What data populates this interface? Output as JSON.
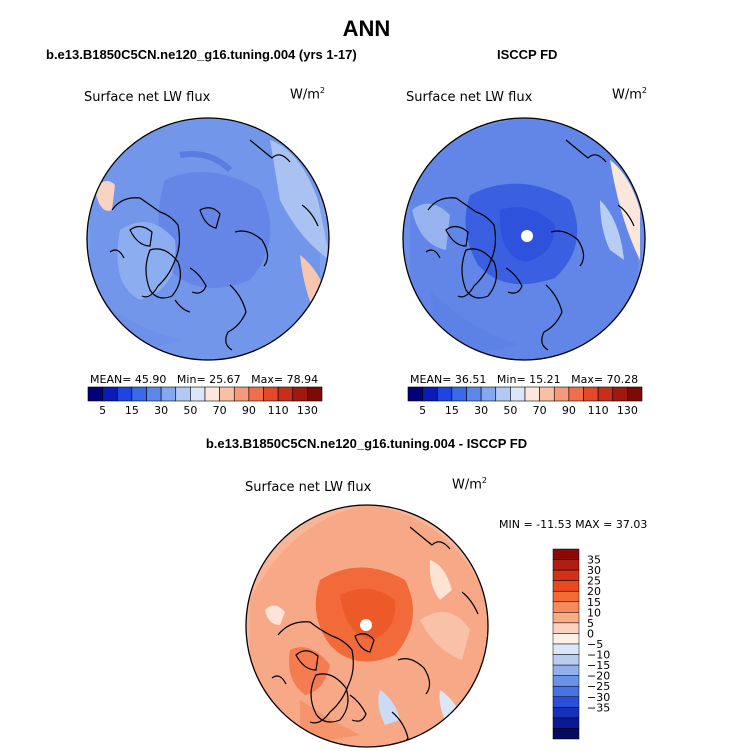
{
  "title": "ANN",
  "panels": [
    {
      "id": "model",
      "case_title": "b.e13.B1850C5CN.ne120_g16.tuning.004 (yrs 1-17)",
      "var_label": "Surface net LW flux",
      "units": "W/m",
      "units_sup": "2",
      "stats": {
        "mean_label": "MEAN=",
        "mean": "45.90",
        "min_label": "Min=",
        "min": "25.67",
        "max_label": "Max=",
        "max": "78.94"
      }
    },
    {
      "id": "obs",
      "case_title": "ISCCP FD",
      "var_label": "Surface net LW flux",
      "units": "W/m",
      "units_sup": "2",
      "stats": {
        "mean_label": "MEAN=",
        "mean": "36.51",
        "min_label": "Min=",
        "min": "15.21",
        "max_label": "Max=",
        "max": "70.28"
      }
    }
  ],
  "field_colorbar": {
    "labels": [
      "5",
      "15",
      "30",
      "50",
      "70",
      "90",
      "110",
      "130"
    ],
    "colors": [
      "#00007a",
      "#0a1bb8",
      "#1f44e3",
      "#3a6ae8",
      "#5c88ea",
      "#84a7ee",
      "#b3c8f2",
      "#dde6f8",
      "#fde6dc",
      "#f9c0a6",
      "#f59a78",
      "#ef6f4b",
      "#e24a2a",
      "#c6301a",
      "#a3180e",
      "#7c0a08"
    ]
  },
  "difference": {
    "title": "b.e13.B1850C5CN.ne120_g16.tuning.004 - ISCCP FD",
    "var_label": "Surface net LW flux",
    "units": "W/m",
    "units_sup": "2",
    "stats": "MIN = -11.53 MAX =  37.03",
    "colorbar_labels": [
      "35",
      "30",
      "25",
      "20",
      "15",
      "10",
      "5",
      "0",
      "−5",
      "−10",
      "−15",
      "−20",
      "−25",
      "−30",
      "−35"
    ],
    "colorbar_colors": [
      "#8a0a0a",
      "#b01e12",
      "#d33217",
      "#e9491f",
      "#f46a33",
      "#f7895a",
      "#f9ab86",
      "#fcd2be",
      "#fdf0e6",
      "#dbe7f7",
      "#b8cdf1",
      "#92b0ec",
      "#6c91e8",
      "#4672e3",
      "#2b4fd8",
      "#1630ba",
      "#0b1a93",
      "#050a60"
    ]
  },
  "chart_data": [
    {
      "type": "heatmap",
      "title": "Surface net LW flux",
      "subtitle": "b.e13.B1850C5CN.ne120_g16.tuning.004 (yrs 1-17)",
      "units": "W/m2",
      "projection": "polar",
      "mean": 45.9,
      "min": 25.67,
      "max": 78.94,
      "levels": [
        5,
        15,
        30,
        50,
        70,
        90,
        110,
        130
      ]
    },
    {
      "type": "heatmap",
      "title": "Surface net LW flux",
      "subtitle": "ISCCP FD",
      "units": "W/m2",
      "projection": "polar",
      "mean": 36.51,
      "min": 15.21,
      "max": 70.28,
      "levels": [
        5,
        15,
        30,
        50,
        70,
        90,
        110,
        130
      ]
    },
    {
      "type": "heatmap",
      "title": "Surface net LW flux",
      "subtitle": "b.e13.B1850C5CN.ne120_g16.tuning.004 - ISCCP FD",
      "units": "W/m2",
      "projection": "polar",
      "min": -11.53,
      "max": 37.03,
      "levels": [
        -35,
        -30,
        -25,
        -20,
        -15,
        -10,
        -5,
        0,
        5,
        10,
        15,
        20,
        25,
        30,
        35
      ]
    }
  ]
}
